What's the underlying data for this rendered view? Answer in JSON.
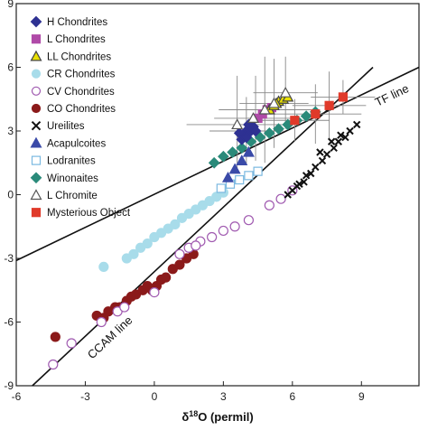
{
  "chart_data": {
    "type": "scatter",
    "xlabel_prefix": "δ",
    "xlabel_sup": "18",
    "xlabel_main": "O (permil)",
    "ylabel": "",
    "xlim": [
      -6,
      11.5
    ],
    "ylim": [
      -9,
      9
    ],
    "x_ticks": [
      -6,
      -3,
      0,
      3,
      6,
      9
    ],
    "y_ticks": [
      -9,
      -6,
      -3,
      0,
      3,
      6,
      9
    ],
    "legend": [
      {
        "name": "H Chondrites",
        "marker": "diamond",
        "color": "#2e3192",
        "filled": true
      },
      {
        "name": "L Chondrites",
        "marker": "square",
        "color": "#b04aa8",
        "filled": true
      },
      {
        "name": "LL Chondrites",
        "marker": "triangle",
        "color": "#e8e000",
        "filled": true
      },
      {
        "name": "CR Chondrites",
        "marker": "circle",
        "color": "#a8dcea",
        "filled": true
      },
      {
        "name": "CV Chondrites",
        "marker": "circle",
        "color": "#a05ab0",
        "filled": false
      },
      {
        "name": "CO Chondrites",
        "marker": "circle",
        "color": "#8b1a1a",
        "filled": true
      },
      {
        "name": "Ureilites",
        "marker": "cross",
        "color": "#111111",
        "filled": true
      },
      {
        "name": "Acapulcoites",
        "marker": "triangle",
        "color": "#3a4aa8",
        "filled": true
      },
      {
        "name": "Lodranites",
        "marker": "square",
        "color": "#7ab8e0",
        "filled": false
      },
      {
        "name": "Winonaites",
        "marker": "diamond",
        "color": "#2a8a7a",
        "filled": true
      },
      {
        "name": "L Chromite",
        "marker": "triangle",
        "color": "#555555",
        "filled": false
      },
      {
        "name": "Mysterious Object",
        "marker": "square",
        "color": "#e03a2a",
        "filled": true
      }
    ],
    "lines": [
      {
        "name": "TF line",
        "x1": -6,
        "y1": -3.1,
        "x2": 11.5,
        "y2": 6.0
      },
      {
        "name": "CCAM line",
        "x1": -5.3,
        "y1": -9.0,
        "x2": 9.5,
        "y2": 6.0
      }
    ],
    "series": [
      {
        "name": "CO Chondrites",
        "points": [
          [
            -4.3,
            -6.7
          ],
          [
            -2.5,
            -5.7
          ],
          [
            -2.2,
            -5.8
          ],
          [
            -2.0,
            -5.5
          ],
          [
            -1.7,
            -5.3
          ],
          [
            -1.5,
            -5.3
          ],
          [
            -1.2,
            -5.0
          ],
          [
            -1.0,
            -4.8
          ],
          [
            -0.8,
            -4.7
          ],
          [
            -0.5,
            -4.5
          ],
          [
            -0.3,
            -4.3
          ],
          [
            -0.1,
            -4.5
          ],
          [
            0.1,
            -4.3
          ],
          [
            0.3,
            -4.0
          ],
          [
            0.5,
            -3.9
          ],
          [
            0.8,
            -3.5
          ],
          [
            1.1,
            -3.3
          ],
          [
            1.4,
            -3.0
          ],
          [
            1.7,
            -2.8
          ]
        ]
      },
      {
        "name": "CR Chondrites",
        "points": [
          [
            -1.2,
            -3.0
          ],
          [
            -0.9,
            -2.8
          ],
          [
            -0.6,
            -2.5
          ],
          [
            -0.3,
            -2.3
          ],
          [
            0.0,
            -2.0
          ],
          [
            0.3,
            -1.8
          ],
          [
            0.6,
            -1.6
          ],
          [
            0.9,
            -1.4
          ],
          [
            1.2,
            -1.1
          ],
          [
            1.5,
            -0.9
          ],
          [
            1.8,
            -0.7
          ],
          [
            2.1,
            -0.5
          ],
          [
            2.4,
            -0.3
          ],
          [
            2.7,
            -0.1
          ],
          [
            3.0,
            0.1
          ],
          [
            -2.2,
            -3.4
          ]
        ]
      },
      {
        "name": "CV Chondrites",
        "points": [
          [
            -4.4,
            -8.0
          ],
          [
            -3.6,
            -7.0
          ],
          [
            -2.3,
            -6.0
          ],
          [
            -1.6,
            -5.5
          ],
          [
            -1.3,
            -5.3
          ],
          [
            0.0,
            -4.6
          ],
          [
            1.1,
            -2.8
          ],
          [
            1.5,
            -2.5
          ],
          [
            2.0,
            -2.2
          ],
          [
            2.5,
            -2.0
          ],
          [
            3.0,
            -1.7
          ],
          [
            3.5,
            -1.5
          ],
          [
            4.1,
            -1.2
          ],
          [
            5.0,
            -0.5
          ],
          [
            5.5,
            -0.2
          ],
          [
            6.0,
            0.2
          ],
          [
            1.8,
            -2.4
          ]
        ]
      },
      {
        "name": "Ureilites",
        "points": [
          [
            5.8,
            0.0
          ],
          [
            6.0,
            0.2
          ],
          [
            6.2,
            0.4
          ],
          [
            6.5,
            0.6
          ],
          [
            6.8,
            1.0
          ],
          [
            7.0,
            1.3
          ],
          [
            7.3,
            1.6
          ],
          [
            7.5,
            1.9
          ],
          [
            7.8,
            2.2
          ],
          [
            8.0,
            2.5
          ],
          [
            8.3,
            2.7
          ],
          [
            8.5,
            3.0
          ],
          [
            8.8,
            3.3
          ],
          [
            7.2,
            2.0
          ],
          [
            7.7,
            2.5
          ],
          [
            8.1,
            2.8
          ],
          [
            6.6,
            0.9
          ],
          [
            6.3,
            0.5
          ]
        ]
      },
      {
        "name": "Winonaites",
        "points": [
          [
            2.6,
            1.5
          ],
          [
            3.0,
            1.8
          ],
          [
            3.4,
            2.0
          ],
          [
            3.8,
            2.2
          ],
          [
            4.2,
            2.5
          ],
          [
            4.6,
            2.7
          ],
          [
            5.0,
            2.9
          ],
          [
            5.4,
            3.1
          ],
          [
            5.8,
            3.3
          ],
          [
            6.2,
            3.5
          ],
          [
            6.6,
            3.7
          ],
          [
            7.0,
            3.9
          ]
        ]
      },
      {
        "name": "Lodranites",
        "points": [
          [
            2.9,
            0.3
          ],
          [
            3.3,
            0.5
          ],
          [
            3.7,
            0.7
          ],
          [
            4.1,
            0.9
          ],
          [
            4.5,
            1.1
          ]
        ]
      },
      {
        "name": "Acapulcoites",
        "points": [
          [
            3.2,
            0.8
          ],
          [
            3.5,
            1.2
          ],
          [
            3.8,
            1.6
          ],
          [
            4.1,
            2.0
          ]
        ]
      },
      {
        "name": "H Chondrites",
        "points": [
          [
            3.8,
            2.6
          ],
          [
            3.9,
            2.8
          ],
          [
            4.0,
            3.0
          ],
          [
            4.1,
            2.9
          ],
          [
            4.2,
            3.1
          ],
          [
            4.3,
            3.2
          ],
          [
            4.0,
            2.7
          ],
          [
            3.7,
            2.9
          ],
          [
            4.4,
            3.0
          ],
          [
            4.1,
            3.3
          ]
        ]
      },
      {
        "name": "L Chondrites",
        "points": [
          [
            4.5,
            3.6
          ],
          [
            4.7,
            3.8
          ],
          [
            4.9,
            4.0
          ],
          [
            5.1,
            4.1
          ]
        ]
      },
      {
        "name": "LL Chondrites",
        "points": [
          [
            5.0,
            4.0
          ],
          [
            5.2,
            4.2
          ],
          [
            5.4,
            4.4
          ],
          [
            5.6,
            4.5
          ],
          [
            5.8,
            4.6
          ],
          [
            5.3,
            4.3
          ]
        ]
      },
      {
        "name": "L Chromite",
        "points": [
          [
            3.6,
            3.3
          ],
          [
            4.3,
            3.6
          ],
          [
            4.8,
            4.0
          ],
          [
            5.2,
            4.3
          ],
          [
            5.7,
            4.8
          ]
        ]
      },
      {
        "name": "Mysterious Object",
        "points": [
          [
            7.0,
            3.8
          ],
          [
            7.6,
            4.2
          ],
          [
            8.2,
            4.6
          ],
          [
            6.1,
            3.5
          ]
        ]
      }
    ],
    "error_bars": [
      {
        "x": 3.6,
        "y": 3.3,
        "xerr": 2.2,
        "yerr": 2.3
      },
      {
        "x": 4.0,
        "y": 3.0,
        "xerr": 1.6,
        "yerr": 1.6
      },
      {
        "x": 4.4,
        "y": 3.6,
        "xerr": 1.8,
        "yerr": 2.0
      },
      {
        "x": 4.8,
        "y": 4.0,
        "xerr": 2.0,
        "yerr": 2.5
      },
      {
        "x": 5.2,
        "y": 4.3,
        "xerr": 1.5,
        "yerr": 2.1
      },
      {
        "x": 5.7,
        "y": 4.8,
        "xerr": 1.4,
        "yerr": 1.7
      },
      {
        "x": 6.1,
        "y": 3.5,
        "xerr": 1.5,
        "yerr": 1.0
      },
      {
        "x": 7.0,
        "y": 3.8,
        "xerr": 2.0,
        "yerr": 1.4
      },
      {
        "x": 7.6,
        "y": 4.2,
        "xerr": 1.6,
        "yerr": 1.6
      },
      {
        "x": 8.2,
        "y": 4.6,
        "xerr": 1.4,
        "yerr": 0.8
      }
    ],
    "grid": false
  }
}
